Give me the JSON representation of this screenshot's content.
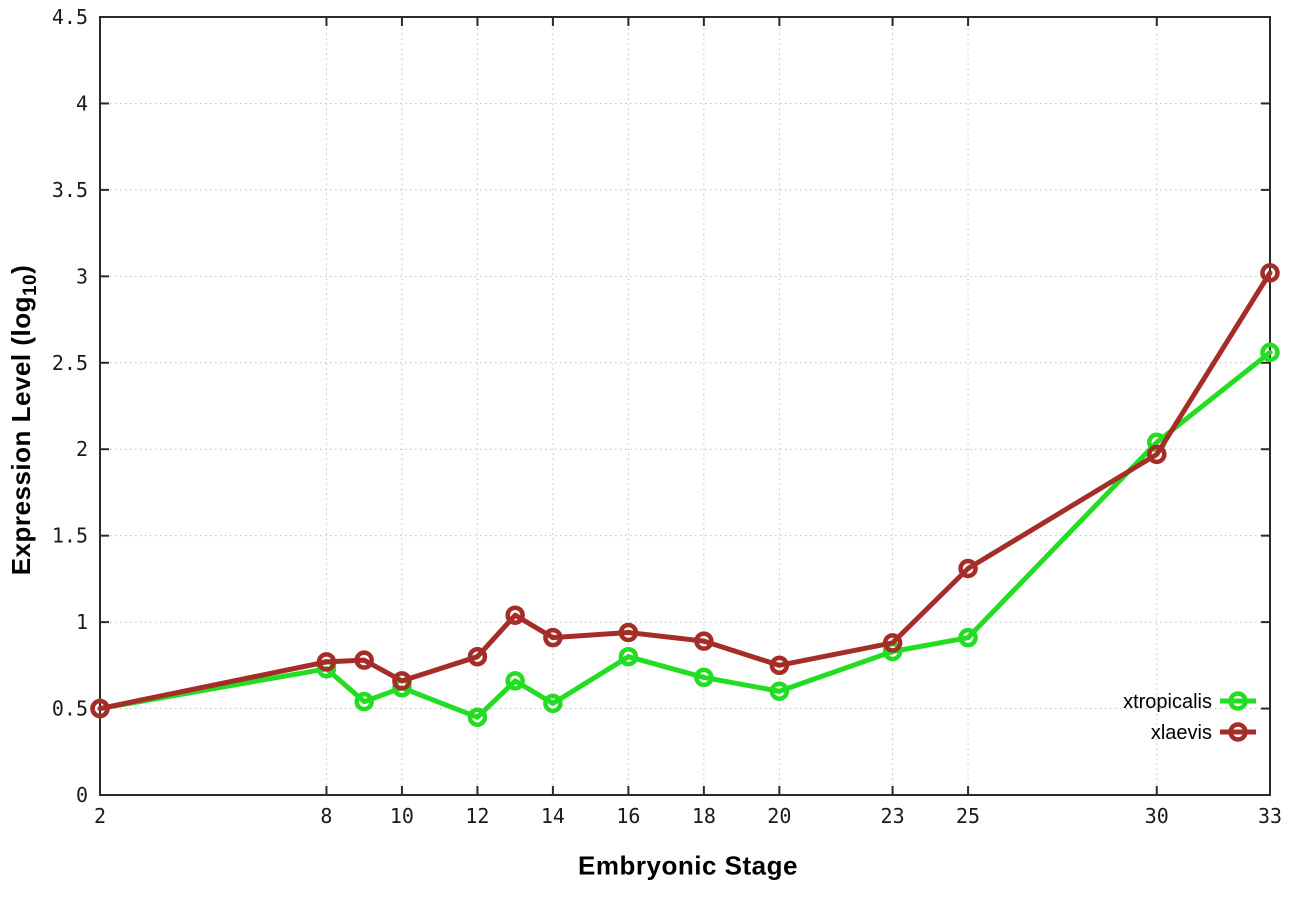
{
  "chart_data": {
    "type": "line",
    "title": "",
    "xlabel": "Embryonic Stage",
    "ylabel": "Expression Level (log10)",
    "ylabel_parts": {
      "prefix": "Expression Level (log",
      "subscript": "10",
      "suffix": ")"
    },
    "xlim": [
      2,
      33
    ],
    "ylim": [
      0,
      4.5
    ],
    "x_ticks": [
      2,
      8,
      10,
      12,
      14,
      16,
      18,
      20,
      23,
      25,
      30,
      33
    ],
    "x_tick_labels": [
      "2",
      "8",
      "10",
      "12",
      "14",
      "16",
      "18",
      "20",
      "23",
      "25",
      "30",
      "33"
    ],
    "y_ticks": [
      0,
      0.5,
      1,
      1.5,
      2,
      2.5,
      3,
      3.5,
      4,
      4.5
    ],
    "y_tick_labels": [
      "0",
      "0.5",
      "1",
      "1.5",
      "2",
      "2.5",
      "3",
      "3.5",
      "4",
      "4.5"
    ],
    "grid": true,
    "legend_position": "inside-right-bottom",
    "x": [
      2,
      8,
      9,
      10,
      12,
      13,
      14,
      16,
      18,
      20,
      23,
      25,
      30,
      33
    ],
    "series": [
      {
        "name": "xtropicalis",
        "color": "#22dd22",
        "marker": "open-circle",
        "values": [
          0.5,
          0.73,
          0.54,
          0.62,
          0.45,
          0.66,
          0.53,
          0.8,
          0.68,
          0.6,
          0.83,
          0.91,
          2.04,
          2.56
        ]
      },
      {
        "name": "xlaevis",
        "color": "#a52d28",
        "marker": "open-circle",
        "values": [
          0.5,
          0.77,
          0.78,
          0.66,
          0.8,
          1.04,
          0.91,
          0.94,
          0.89,
          0.75,
          0.88,
          1.31,
          1.97,
          3.02
        ]
      }
    ]
  },
  "colors": {
    "background": "#ffffff",
    "border": "#2a2a2a",
    "grid": "#c0c0c0",
    "tick_text": "#1a1a1a"
  }
}
